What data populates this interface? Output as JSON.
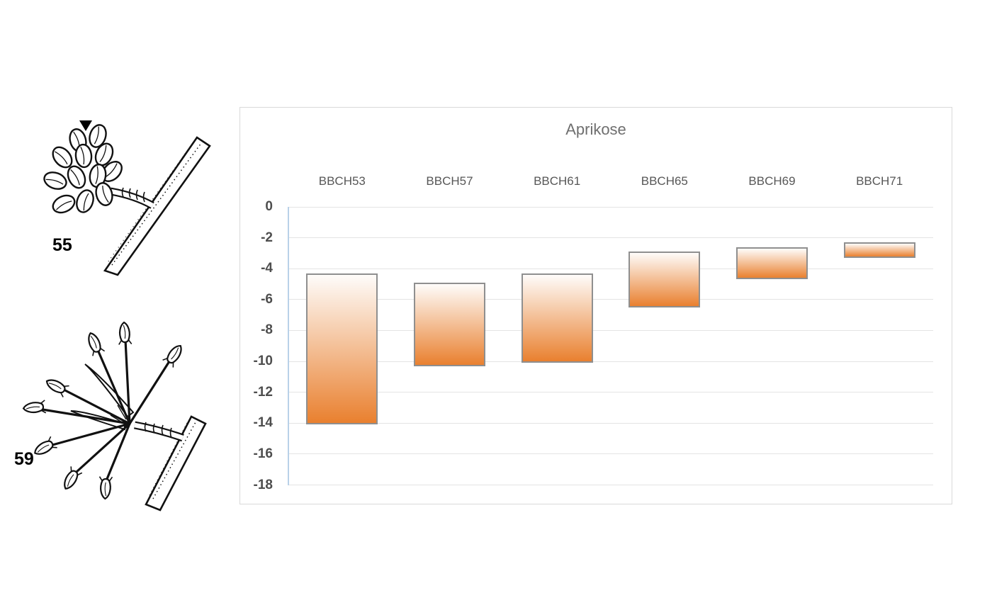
{
  "figure": {
    "stage_labels": {
      "stage55": "55",
      "stage59": "59"
    }
  },
  "chart_data": {
    "type": "bar",
    "subtype": "floating-range-columns",
    "title": "Aprikose",
    "categories": [
      "BBCH53",
      "BBCH57",
      "BBCH61",
      "BBCH65",
      "BBCH69",
      "BBCH71"
    ],
    "bars": [
      {
        "category": "BBCH53",
        "from": -4.3,
        "to": -14.1
      },
      {
        "category": "BBCH57",
        "from": -4.9,
        "to": -10.3
      },
      {
        "category": "BBCH61",
        "from": -4.3,
        "to": -10.1
      },
      {
        "category": "BBCH65",
        "from": -2.9,
        "to": -6.5
      },
      {
        "category": "BBCH69",
        "from": -2.6,
        "to": -4.7
      },
      {
        "category": "BBCH71",
        "from": -2.3,
        "to": -3.3
      }
    ],
    "ylim": [
      0,
      -18
    ],
    "yticks": [
      "0",
      "-2",
      "-4",
      "-6",
      "-8",
      "-10",
      "-12",
      "-14",
      "-16",
      "-18"
    ],
    "xlabel": "",
    "ylabel": "",
    "grid": true,
    "legend": false,
    "category_axis_position": "top",
    "colors": {
      "bar_gradient_top": "#fefcfa",
      "bar_gradient_bottom": "#e9802f",
      "bar_border": "#8f8f8f",
      "axis_line": "#b9d1e8",
      "gridline": "#e4e4e4",
      "tick_label": "#4e4e4e",
      "category_label": "#575757",
      "title": "#6f6f6f",
      "chart_border": "#d9d9d9"
    }
  }
}
